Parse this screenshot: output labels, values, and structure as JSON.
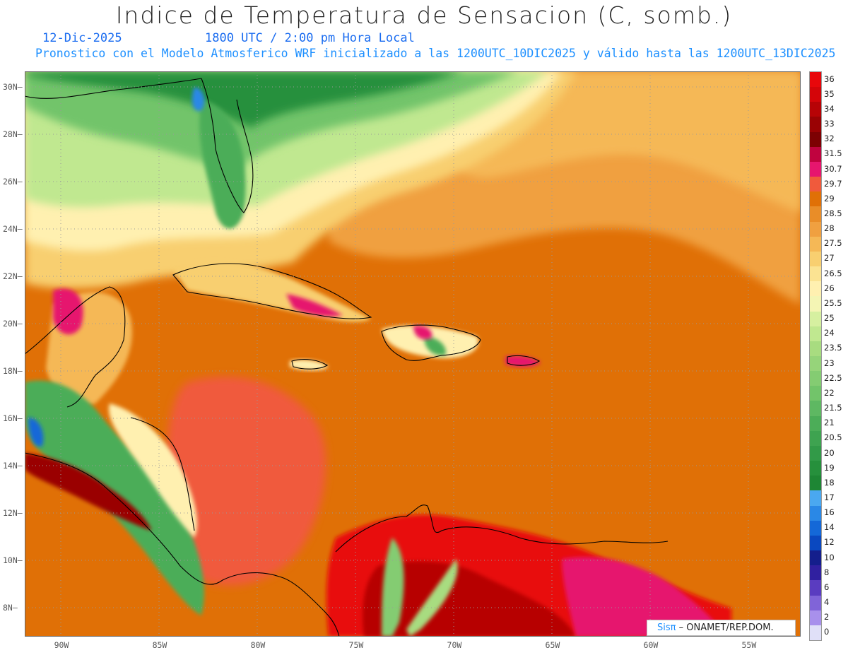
{
  "header": {
    "title": "Indice de Temperatura de Sensacion (C, somb.)",
    "date": "12-Dic-2025",
    "time": "1800 UTC / 2:00 pm Hora Local",
    "model": "Pronostico con el Modelo Atmosferico WRF inicializado a las 1200UTC_10DIC2025 y válido hasta las  1200UTC_13DIC2025"
  },
  "map": {
    "lat_labels": [
      "30N",
      "28N",
      "26N",
      "24N",
      "22N",
      "20N",
      "18N",
      "16N",
      "14N",
      "12N",
      "10N",
      "8N"
    ],
    "lon_labels": [
      "90W",
      "85W",
      "80W",
      "75W",
      "70W",
      "65W",
      "60W",
      "55W"
    ],
    "lat_range": [
      6.8,
      30.7
    ],
    "lon_range": [
      -92.0,
      -52.5
    ],
    "grid": true
  },
  "colorbar": {
    "labels": [
      "36",
      "35",
      "34",
      "33",
      "32",
      "31.5",
      "30.7",
      "29.7",
      "29",
      "28.5",
      "28",
      "27.5",
      "27",
      "26.5",
      "26",
      "25.5",
      "25",
      "24",
      "23.5",
      "23",
      "22.5",
      "22",
      "21.5",
      "21",
      "20.5",
      "20",
      "19",
      "18",
      "17",
      "16",
      "14",
      "12",
      "10",
      "8",
      "6",
      "4",
      "2",
      "0"
    ],
    "colors": [
      "#e8070b",
      "#d40509",
      "#b70306",
      "#9a0204",
      "#7d0103",
      "#c0033f",
      "#e6166e",
      "#f05a3c",
      "#e07006",
      "#e98d28",
      "#f0a040",
      "#f5b856",
      "#f8cf70",
      "#fbe392",
      "#fff0b0",
      "#f4f5b4",
      "#d6f0a0",
      "#c0e890",
      "#a8dc80",
      "#96d47a",
      "#84cc72",
      "#72c46a",
      "#5eb862",
      "#4cad58",
      "#3ea350",
      "#329a48",
      "#26903c",
      "#1e8634",
      "#4aa8f0",
      "#2a88e6",
      "#1468d8",
      "#0a48c0",
      "#141e8c",
      "#3020a0",
      "#5a3cc0",
      "#8064d8",
      "#a890ec",
      "#e0e0f8"
    ]
  },
  "credit": {
    "brand": "Sisπ",
    "text": "– ONAMET/REP.DOM."
  }
}
